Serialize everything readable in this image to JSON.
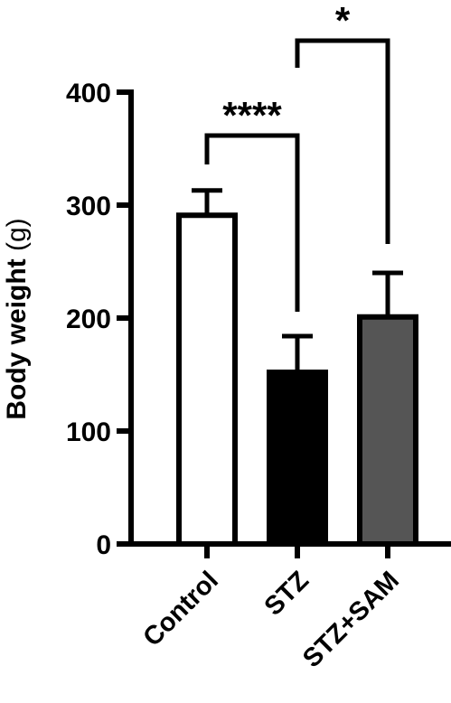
{
  "chart_data": {
    "type": "bar",
    "categories": [
      "Control",
      "STZ",
      "STZ+SAM"
    ],
    "values": [
      291,
      152,
      201
    ],
    "errors": [
      22,
      32,
      39
    ],
    "colors": [
      "#ffffff",
      "#000000",
      "#555555"
    ],
    "ylabel_main": "Body weight",
    "ylabel_unit": "(g)",
    "ylim": [
      0,
      400
    ],
    "yticks": [
      0,
      100,
      200,
      300,
      400
    ],
    "ytick_labels": [
      "0",
      "100",
      "200",
      "300",
      "400"
    ],
    "grid": false,
    "significance": [
      {
        "from": 0,
        "to": 1,
        "label": "****"
      },
      {
        "from": 1,
        "to": 2,
        "label": "*"
      }
    ]
  }
}
